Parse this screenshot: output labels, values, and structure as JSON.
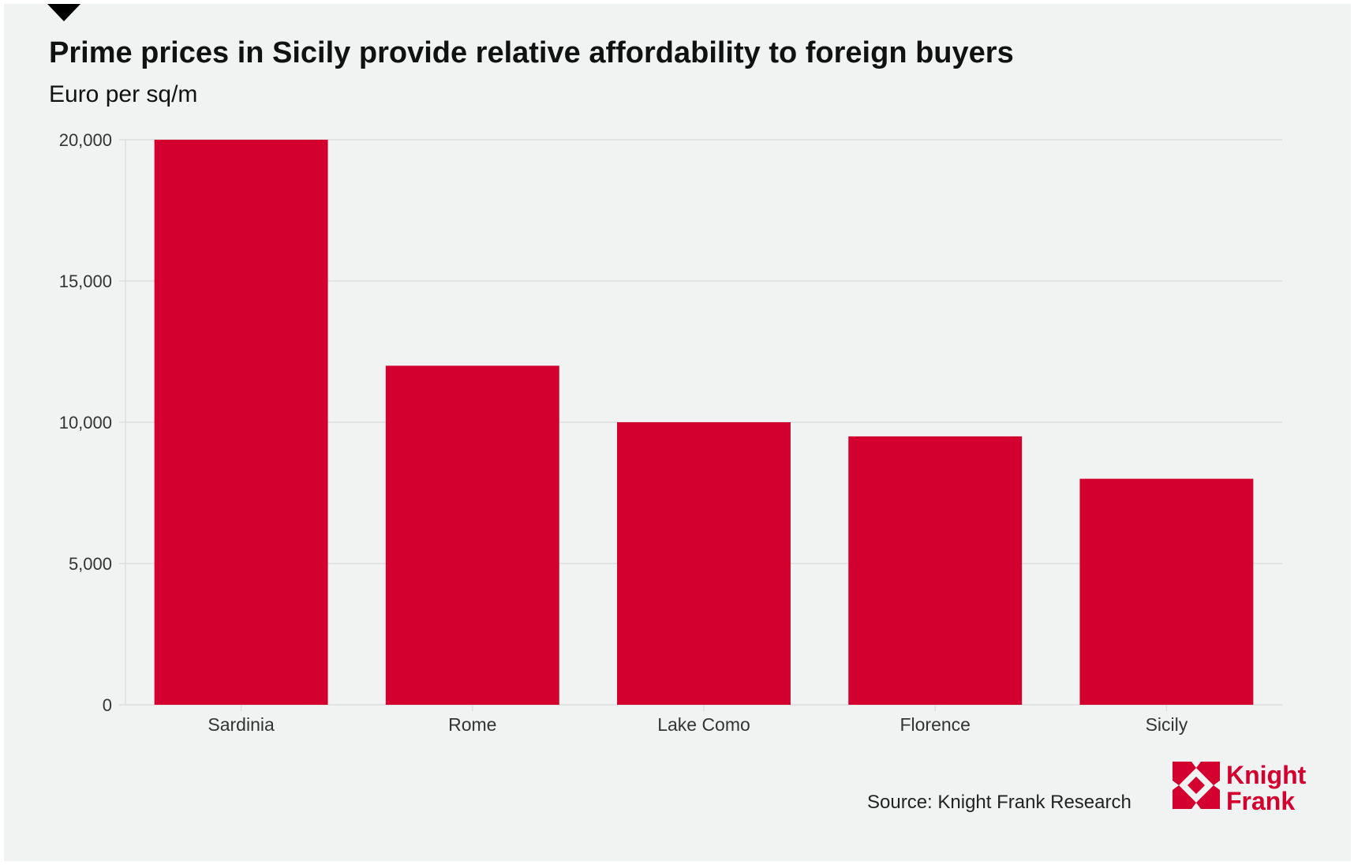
{
  "chart_data": {
    "type": "bar",
    "title": "Prime prices in Sicily provide relative affordability to foreign buyers",
    "subtitle": "Euro per sq/m",
    "categories": [
      "Sardinia",
      "Rome",
      "Lake Como",
      "Florence",
      "Sicily"
    ],
    "values": [
      20000,
      12000,
      10000,
      9500,
      8000
    ],
    "ylim": [
      0,
      20000
    ],
    "yticks": [
      0,
      5000,
      10000,
      15000,
      20000
    ],
    "ytick_labels": [
      "0",
      "5,000",
      "10,000",
      "15,000",
      "20,000"
    ],
    "grid": true,
    "bar_color": "#d3002f",
    "xlabel": "",
    "ylabel": ""
  },
  "footer": {
    "source": "Source: Knight Frank Research",
    "logo_text": [
      "Knight",
      "Frank"
    ]
  },
  "colors": {
    "background": "#f0f3f2",
    "accent": "#d3002f"
  }
}
